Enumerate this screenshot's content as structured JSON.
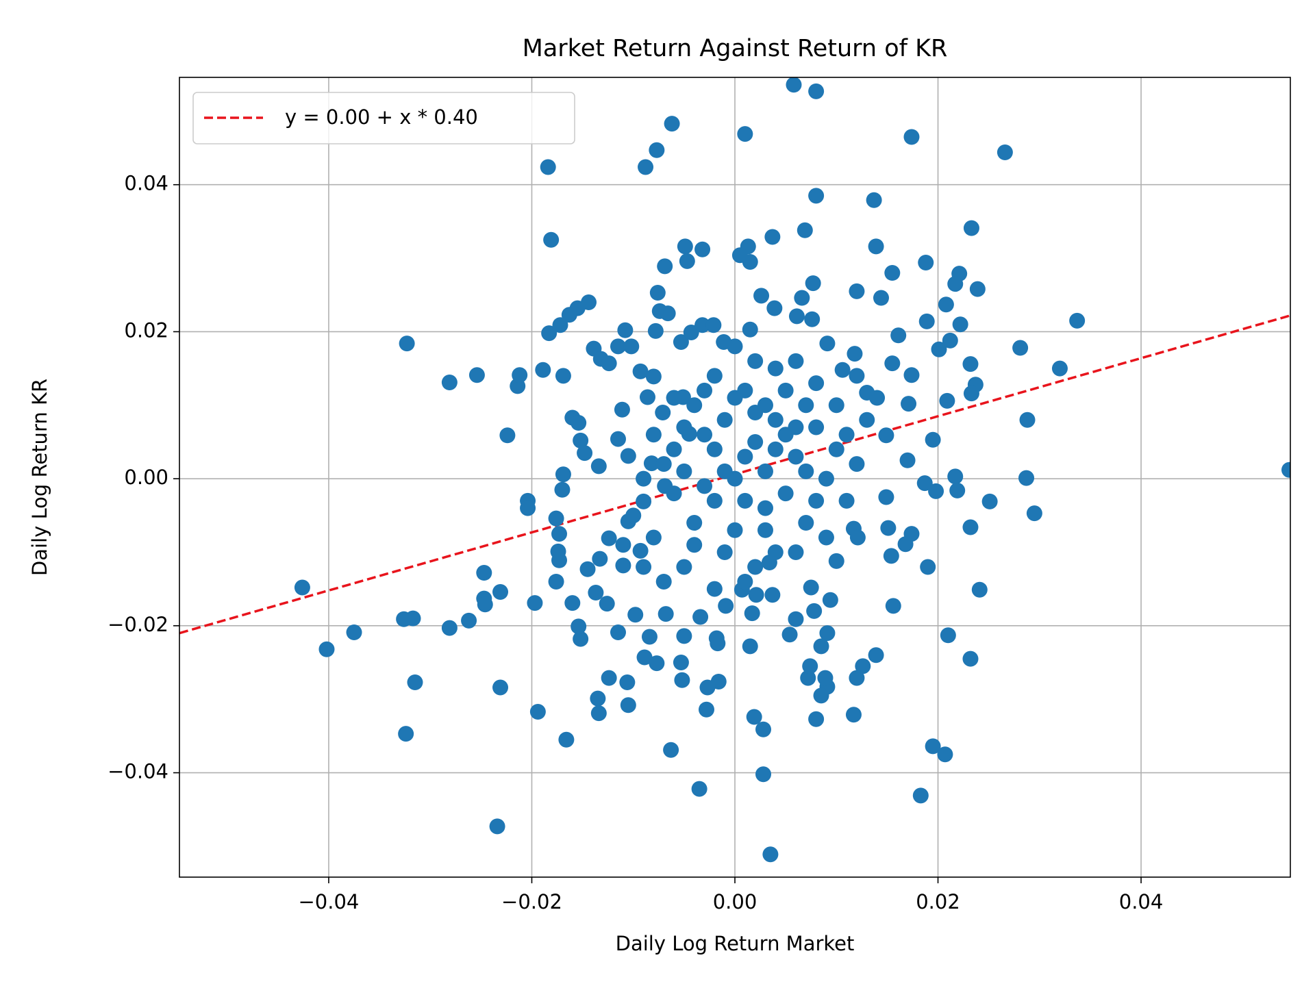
{
  "chart_data": {
    "type": "scatter",
    "title": "Market Return Against Return of KR",
    "x_label": "Daily Log Return Market",
    "y_label": "Daily Log Return KR",
    "color": "#1f77b4",
    "grid": true,
    "legend": "upper left",
    "xlim": [
      -0.0547,
      0.0547
    ],
    "ylim": [
      -0.0542,
      0.0546
    ],
    "xticks": [
      {
        "value": -0.04,
        "label": "−0.04"
      },
      {
        "value": -0.02,
        "label": "−0.02"
      },
      {
        "value": 0,
        "label": "0.00"
      },
      0.02,
      0.04
    ],
    "yticks": [
      {
        "value": -0.04,
        "label": "−0.04"
      },
      {
        "value": -0.02,
        "label": "−0.02"
      },
      {
        "value": 0,
        "label": "0.00"
      },
      0.02,
      0.04
    ],
    "fit": {
      "label": "y = 0.00 + x * 0.40",
      "intercept": 0.0006,
      "slope": 0.395,
      "color": "#e8141c"
    },
    "x": [
      0.0058,
      0.008,
      -0.0062,
      0.001,
      0.0174,
      0.0266,
      -0.0077,
      -0.0088,
      -0.0184,
      0.008,
      0.0137,
      -0.0181,
      0.0233,
      0.0069,
      0.0139,
      -0.0049,
      -0.0032,
      0.0037,
      0.0013,
      0.0005,
      0.0015,
      0.0188,
      0.0155,
      -0.0069,
      -0.0047,
      0.0077,
      0.0221,
      0.0217,
      0.0239,
      0.012,
      0.0144,
      -0.0076,
      -0.0144,
      -0.0155,
      -0.0163,
      -0.0172,
      -0.0183,
      0.0337,
      0.0161,
      0.0208,
      0.0189,
      0.0222,
      0.0212,
      0.0201,
      0.0281,
      0.032,
      0.0232,
      0.0237,
      0.0233,
      0.0209,
      0.0174,
      0.0155,
      0.0288,
      0.0195,
      0.0287,
      0.0217,
      0.0219,
      0.0251,
      0.0295,
      0.0232,
      0.0198,
      0.0546,
      0.019,
      0.0241,
      0.021,
      0.0232,
      0.0195,
      0.0207,
      0.0183,
      0.0156,
      0.0154,
      0.0151,
      0.0174,
      0.0168,
      0.0139,
      0.0126,
      0.012,
      0.0117,
      0.008,
      0.0091,
      0.0085,
      0.0089,
      0.0072,
      0.0074,
      0.0035,
      0.0028,
      0.0028,
      0.0019,
      -0.0035,
      -0.0028,
      -0.0016,
      -0.0027,
      -0.0063,
      -0.0053,
      -0.0052,
      0.0015,
      -0.0017,
      -0.0018,
      -0.0089,
      -0.0077,
      -0.0084,
      -0.0106,
      -0.0105,
      -0.0124,
      -0.0135,
      -0.0134,
      -0.0166,
      -0.0194,
      -0.0234,
      -0.0231,
      -0.0315,
      -0.0324,
      -0.0326,
      -0.0317,
      -0.0402,
      -0.0375,
      -0.0426,
      -0.0281,
      -0.0262,
      -0.0247,
      -0.0247,
      -0.0246,
      -0.0231,
      -0.0197,
      -0.0152,
      -0.0154,
      -0.016,
      -0.0176,
      -0.0323,
      -0.0281,
      -0.0254,
      -0.0224,
      -0.0214,
      -0.0212,
      -0.0189,
      -0.0169,
      -0.0204,
      -0.0204,
      -0.0169,
      -0.017,
      -0.0176,
      -0.0173,
      -0.0174,
      -0.0173,
      -0.016,
      -0.0154,
      -0.0152,
      -0.0148,
      -0.0134,
      -0.0139,
      -0.0132,
      -0.0124,
      -0.0115,
      -0.0108,
      -0.0102,
      -0.0093,
      -0.0078,
      -0.0074,
      -0.0066,
      -0.0053,
      -0.0043,
      -0.0032,
      -0.0021,
      -0.0011,
      0.0015,
      0.0026,
      0.0039,
      0.0061,
      0.0066,
      0.0076,
      0.0091,
      0.0106,
      0.0118,
      0.013,
      0.0149,
      0.0171,
      0.0187,
      0.017,
      0.0149,
      0.01,
      0.0117,
      0.0121,
      0.0094,
      0.0091,
      0.0085,
      0.0078,
      0.0075,
      0.0054,
      0.006,
      0.0037,
      0.0034,
      0.0021,
      0.0017,
      0.0007,
      -0.0009,
      -0.0034,
      -0.005,
      -0.0068,
      -0.0098,
      -0.0115,
      -0.0126,
      -0.0137,
      -0.0145,
      -0.0133,
      -0.0124,
      -0.011,
      -0.0093,
      -0.0105,
      -0.009,
      -0.0069,
      -0.0082,
      -0.0105,
      -0.0115,
      -0.0111,
      -0.0086,
      -0.0071,
      -0.008,
      -0.0051,
      -0.0045,
      0.0,
      0.002,
      -0.002,
      0.004,
      -0.004,
      0.001,
      -0.001,
      0.006,
      -0.006,
      0.003,
      -0.003,
      0.005,
      -0.005,
      0.008,
      -0.008,
      0.007,
      -0.007,
      0.002,
      -0.002,
      0.01,
      -0.01,
      0.009,
      -0.009,
      0.011,
      0.004,
      -0.004,
      0.001,
      -0.001,
      0.003,
      -0.003,
      0.006,
      0.0,
      0.002,
      -0.006,
      0.005,
      0.008,
      0.012,
      -0.002,
      0.001,
      0.004,
      -0.005,
      0.007,
      -0.001,
      0.003,
      0.009,
      -0.007,
      0.0,
      0.002,
      -0.003,
      0.006,
      0.01,
      -0.008,
      0.011,
      0.005,
      -0.004,
      0.013,
      -0.011,
      0.001,
      0.007,
      -0.006,
      0.014,
      0.004,
      -0.009,
      0.003,
      0.008,
      -0.002,
      0.012,
      0.0,
      0.006,
      -0.005
    ],
    "values": [
      0.0536,
      0.0527,
      0.0483,
      0.0469,
      0.0465,
      0.0444,
      0.0447,
      0.0424,
      0.0424,
      0.0385,
      0.0379,
      0.0325,
      0.0341,
      0.0338,
      0.0316,
      0.0316,
      0.0312,
      0.0329,
      0.0316,
      0.0304,
      0.0295,
      0.0294,
      0.028,
      0.0289,
      0.0296,
      0.0266,
      0.0279,
      0.0265,
      0.0258,
      0.0255,
      0.0246,
      0.0253,
      0.024,
      0.0232,
      0.0223,
      0.0209,
      0.0198,
      0.0215,
      0.0195,
      0.0237,
      0.0214,
      0.021,
      0.0188,
      0.0176,
      0.0178,
      0.015,
      0.0156,
      0.0128,
      0.0116,
      0.0106,
      0.0141,
      0.0157,
      0.008,
      0.0053,
      0.0001,
      0.0003,
      -0.0016,
      -0.0031,
      -0.0047,
      -0.0066,
      -0.0017,
      0.0012,
      -0.012,
      -0.0151,
      -0.0213,
      -0.0245,
      -0.0364,
      -0.0375,
      -0.0431,
      -0.0173,
      -0.0105,
      -0.0067,
      -0.0075,
      -0.0089,
      -0.024,
      -0.0255,
      -0.0271,
      -0.0321,
      -0.0327,
      -0.0283,
      -0.0295,
      -0.0271,
      -0.0271,
      -0.0255,
      -0.0511,
      -0.0402,
      -0.0341,
      -0.0324,
      -0.0422,
      -0.0314,
      -0.0276,
      -0.0284,
      -0.0369,
      -0.025,
      -0.0274,
      -0.0228,
      -0.0224,
      -0.0217,
      -0.0243,
      -0.0251,
      -0.0215,
      -0.0277,
      -0.0308,
      -0.0271,
      -0.0299,
      -0.0319,
      -0.0355,
      -0.0317,
      -0.0473,
      -0.0284,
      -0.0277,
      -0.0347,
      -0.0191,
      -0.019,
      -0.0232,
      -0.0209,
      -0.0148,
      -0.0203,
      -0.0193,
      -0.0128,
      -0.0163,
      -0.0171,
      -0.0154,
      -0.0169,
      -0.0218,
      -0.0201,
      -0.0169,
      -0.014,
      0.0184,
      0.0131,
      0.0141,
      0.0059,
      0.0126,
      0.0141,
      0.0148,
      0.014,
      -0.003,
      -0.004,
      0.0006,
      -0.0015,
      -0.0054,
      -0.0075,
      -0.0099,
      -0.0111,
      0.0083,
      0.0076,
      0.0052,
      0.0035,
      0.0017,
      0.0177,
      0.0163,
      0.0157,
      0.018,
      0.0202,
      0.018,
      0.0146,
      0.0201,
      0.0228,
      0.0225,
      0.0186,
      0.0199,
      0.0209,
      0.0209,
      0.0186,
      0.0203,
      0.0249,
      0.0232,
      0.0221,
      0.0246,
      0.0217,
      0.0184,
      0.0148,
      0.017,
      0.0117,
      0.0059,
      0.0102,
      -0.0006,
      0.0025,
      -0.0025,
      -0.0112,
      -0.0068,
      -0.008,
      -0.0165,
      -0.021,
      -0.0228,
      -0.018,
      -0.0148,
      -0.0212,
      -0.0191,
      -0.0158,
      -0.0114,
      -0.0158,
      -0.0183,
      -0.0151,
      -0.0173,
      -0.0188,
      -0.0214,
      -0.0184,
      -0.0185,
      -0.0209,
      -0.017,
      -0.0155,
      -0.0123,
      -0.0109,
      -0.0081,
      -0.0118,
      -0.0098,
      -0.0058,
      -0.0031,
      -0.001,
      0.0021,
      0.0031,
      0.0054,
      0.0094,
      0.0111,
      0.009,
      0.0139,
      0.0111,
      0.0061,
      0.0,
      0.005,
      -0.003,
      0.008,
      -0.006,
      0.012,
      -0.01,
      0.003,
      0.004,
      -0.004,
      0.006,
      0.012,
      -0.012,
      0.007,
      -0.008,
      -0.006,
      0.002,
      0.016,
      -0.015,
      0.01,
      -0.005,
      0.0,
      -0.012,
      0.006,
      -0.01,
      0.01,
      0.003,
      0.008,
      0.001,
      -0.001,
      0.016,
      -0.007,
      -0.012,
      -0.002,
      -0.002,
      0.013,
      0.002,
      0.014,
      -0.003,
      0.004,
      0.007,
      0.01,
      0.001,
      0.01,
      -0.008,
      -0.014,
      0.018,
      0.009,
      0.012,
      -0.01,
      0.004,
      0.006,
      -0.003,
      0.006,
      -0.009,
      0.008,
      -0.009,
      -0.014,
      0.001,
      0.011,
      0.011,
      0.015,
      0.0,
      -0.007,
      -0.003,
      0.004,
      0.014,
      0.011,
      0.007,
      0.001
    ]
  }
}
